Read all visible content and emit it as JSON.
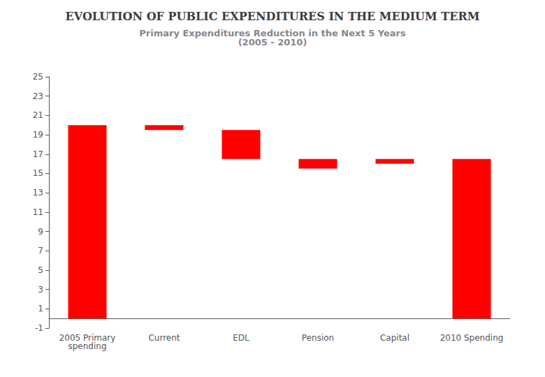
{
  "chart_data": {
    "type": "waterfall",
    "title": "EVOLUTION OF PUBLIC EXPENDITURES IN THE MEDIUM TERM",
    "subtitle": "Primary Expenditures Reduction in the Next 5 Years\n(2005 - 2010)",
    "categories": [
      "2005 Primary\nspending",
      "Current",
      "EDL",
      "Pension",
      "Capital",
      "2010 Spending"
    ],
    "bottoms": [
      0,
      19.5,
      16.5,
      15.5,
      16.0,
      0
    ],
    "values": [
      20.0,
      0.5,
      3.0,
      1.0,
      0.5,
      16.5
    ],
    "color": "#FF0000",
    "ylim": [
      -1,
      25
    ],
    "yticks": [
      -1,
      1,
      3,
      5,
      7,
      9,
      11,
      13,
      15,
      17,
      19,
      21,
      23,
      25
    ],
    "grid": false
  }
}
